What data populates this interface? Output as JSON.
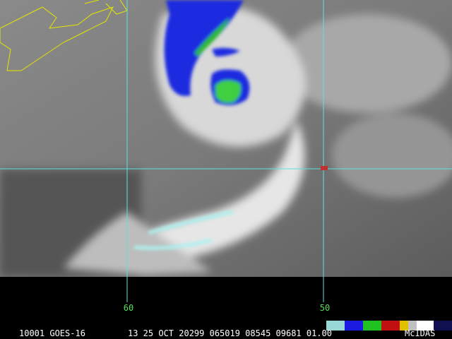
{
  "grid_labels": [
    "60",
    "50"
  ],
  "status_bar": {
    "satellite": "10001 GOES-16",
    "fields": "13 25 OCT 20299 065019 08545 09681 01.00",
    "logo": "McIDAS"
  }
}
